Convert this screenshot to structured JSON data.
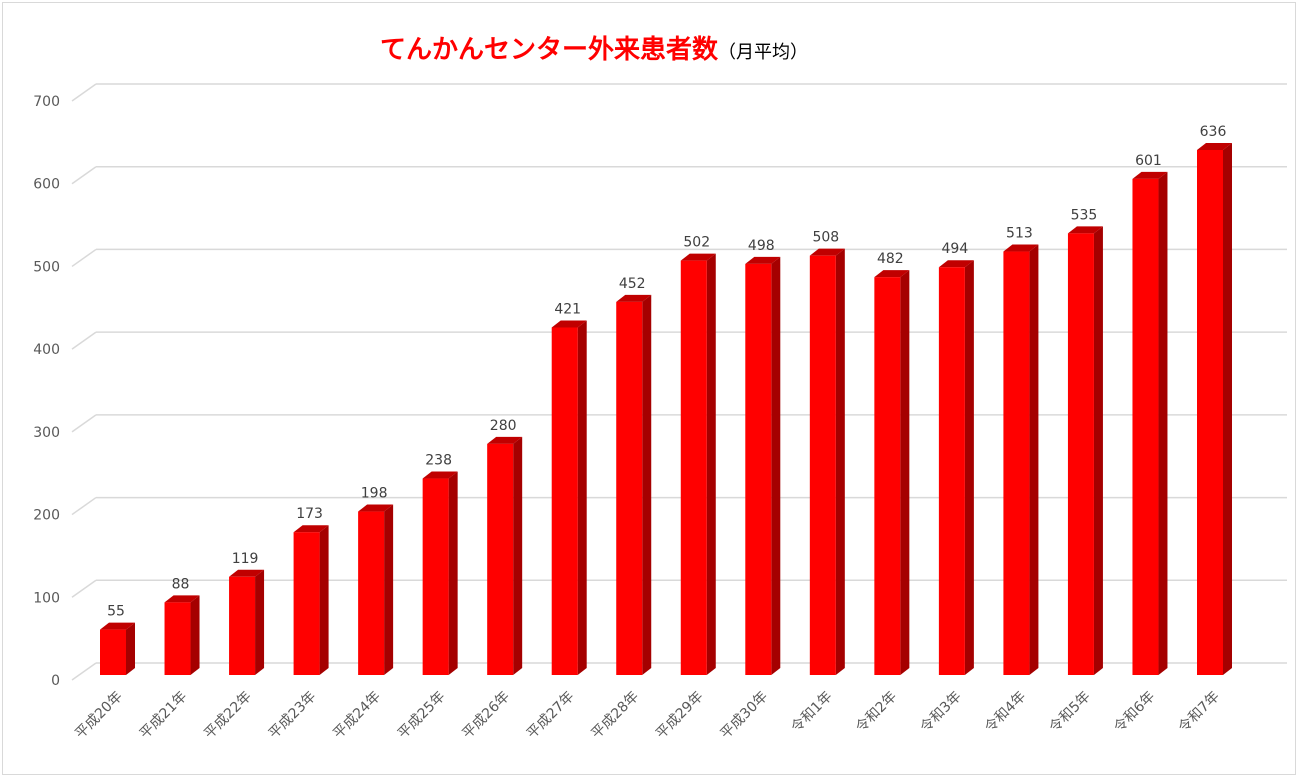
{
  "chart_data": {
    "type": "bar",
    "style": "3d-column",
    "title": "てんかんセンター外来患者数",
    "title_suffix": "（月平均）",
    "xlabel": "",
    "ylabel": "",
    "ylim": [
      0,
      700
    ],
    "yticks": [
      0,
      100,
      200,
      300,
      400,
      500,
      600,
      700
    ],
    "grid": true,
    "legend": "none",
    "categories": [
      "平成20年",
      "平成21年",
      "平成22年",
      "平成23年",
      "平成24年",
      "平成25年",
      "平成26年",
      "平成27年",
      "平成28年",
      "平成29年",
      "平成30年",
      "令和1年",
      "令和2年",
      "令和3年",
      "令和4年",
      "令和5年",
      "令和6年",
      "令和7年"
    ],
    "values": [
      55,
      88,
      119,
      173,
      198,
      238,
      280,
      421,
      452,
      502,
      498,
      508,
      482,
      494,
      513,
      535,
      601,
      636
    ],
    "colors": {
      "bar_front": "#ff0000",
      "bar_side": "#a50000",
      "bar_top": "#c00000",
      "title": "#ff0000",
      "grid": "#d9d9d9"
    }
  }
}
